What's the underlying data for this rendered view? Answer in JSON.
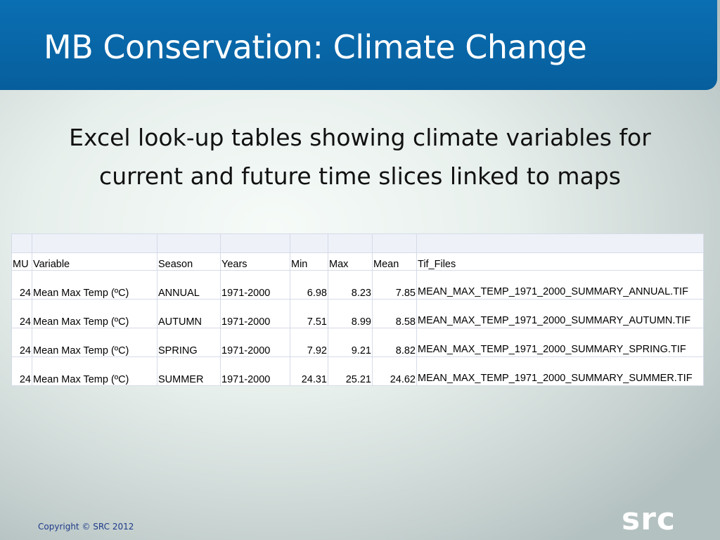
{
  "slide": {
    "title": "MB Conservation: Climate Change",
    "subtitle_line1": "Excel look-up tables showing climate variables for",
    "subtitle_line2": "current and future time slices linked to maps"
  },
  "table": {
    "headers": [
      "MU",
      "Variable",
      "Season",
      "Years",
      "Min",
      "Max",
      "Mean",
      "Tif_Files"
    ],
    "rows": [
      [
        "24",
        "Mean Max Temp (ºC)",
        "ANNUAL",
        "1971-2000",
        "6.98",
        "8.23",
        "7.85",
        "MEAN_MAX_TEMP_1971_2000_SUMMARY_ANNUAL.TIF"
      ],
      [
        "24",
        "Mean Max Temp (ºC)",
        "AUTUMN",
        "1971-2000",
        "7.51",
        "8.99",
        "8.58",
        "MEAN_MAX_TEMP_1971_2000_SUMMARY_AUTUMN.TIF"
      ],
      [
        "24",
        "Mean Max Temp (ºC)",
        "SPRING",
        "1971-2000",
        "7.92",
        "9.21",
        "8.82",
        "MEAN_MAX_TEMP_1971_2000_SUMMARY_SPRING.TIF"
      ],
      [
        "24",
        "Mean Max Temp (ºC)",
        "SUMMER",
        "1971-2000",
        "24.31",
        "25.21",
        "24.62",
        "MEAN_MAX_TEMP_1971_2000_SUMMARY_SUMMER.TIF"
      ]
    ]
  },
  "footer": {
    "copyright": "Copyright © SRC 2012",
    "logo_text": "src"
  }
}
